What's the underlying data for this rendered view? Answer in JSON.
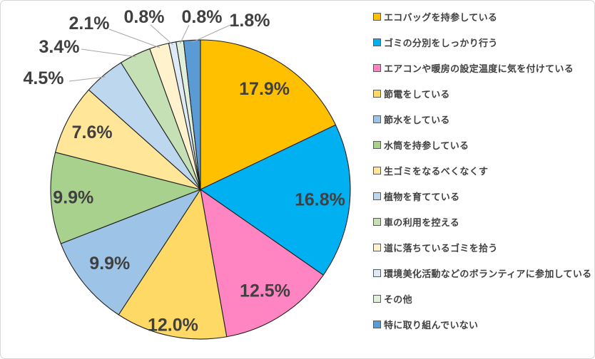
{
  "chart_data": {
    "type": "pie",
    "title": "",
    "unit": "%",
    "direction": "clockwise",
    "start_angle": "12-oclock",
    "legend_position": "right",
    "label_color": "#404040",
    "slice_border_color": "#202020",
    "leader_line_color": "#a6a6a6",
    "background": "#ffffff",
    "series": [
      {
        "label": "エコバッグを持参している",
        "value": 17.9,
        "display": "17.9%",
        "color": "#FFC000"
      },
      {
        "label": "ゴミの分別をしっかり行う",
        "value": 16.8,
        "display": "16.8%",
        "color": "#00B0F0"
      },
      {
        "label": "エアコンや暖房の設定温度に気を付けている",
        "value": 12.5,
        "display": "12.5%",
        "color": "#FF85C2"
      },
      {
        "label": "節電をしている",
        "value": 12.0,
        "display": "12.0%",
        "color": "#FFD966"
      },
      {
        "label": "節水をしている",
        "value": 9.9,
        "display": "9.9%",
        "color": "#9DC3E6"
      },
      {
        "label": "水筒を持参している",
        "value": 9.9,
        "display": "9.9%",
        "color": "#A9D18E"
      },
      {
        "label": "生ゴミをなるべくなくす",
        "value": 7.6,
        "display": "7.6%",
        "color": "#FFE699"
      },
      {
        "label": "植物を育てている",
        "value": 4.5,
        "display": "4.5%",
        "color": "#BDD7EE"
      },
      {
        "label": "車の利用を控える",
        "value": 3.4,
        "display": "3.4%",
        "color": "#C5E0B4"
      },
      {
        "label": "道に落ちているゴミを拾う",
        "value": 2.1,
        "display": "2.1%",
        "color": "#FFF2CC"
      },
      {
        "label": "環境美化活動などのボランティアに参加している",
        "value": 0.8,
        "display": "0.8%",
        "color": "#DEEBF7"
      },
      {
        "label": "その他",
        "value": 0.8,
        "display": "0.8%",
        "color": "#E2EFDA"
      },
      {
        "label": "特に取り組んでいない",
        "value": 1.8,
        "display": "1.8%",
        "color": "#5B9BD5"
      }
    ]
  }
}
